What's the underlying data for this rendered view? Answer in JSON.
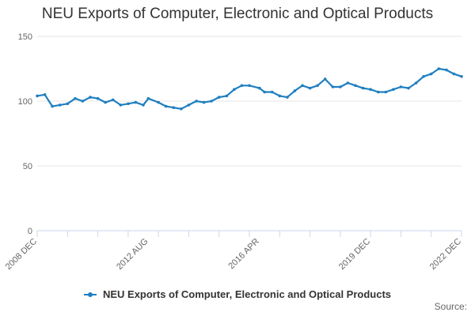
{
  "chart_data": {
    "type": "line",
    "title": "NEU Exports of Computer, Electronic and Optical Products",
    "xlabel": "",
    "ylabel": "",
    "ylim": [
      0,
      150
    ],
    "yticks": [
      0,
      50,
      100,
      150
    ],
    "x_tick_labels": [
      "2008 DEC",
      "2012 AUG",
      "2016 APR",
      "2019 DEC",
      "2022 DEC"
    ],
    "grid": true,
    "legend_position": "bottom",
    "series": [
      {
        "name": "NEU Exports of Computer, Electronic and Optical Products",
        "color": "#1f7fc0",
        "x": [
          "2008-12",
          "2009-03",
          "2009-06",
          "2009-09",
          "2009-12",
          "2010-03",
          "2010-06",
          "2010-09",
          "2010-12",
          "2011-03",
          "2011-06",
          "2011-09",
          "2011-12",
          "2012-03",
          "2012-06",
          "2012-08",
          "2012-12",
          "2013-03",
          "2013-06",
          "2013-09",
          "2013-12",
          "2014-03",
          "2014-06",
          "2014-09",
          "2014-12",
          "2015-03",
          "2015-06",
          "2015-09",
          "2015-12",
          "2016-04",
          "2016-06",
          "2016-09",
          "2016-12",
          "2017-03",
          "2017-06",
          "2017-09",
          "2017-12",
          "2018-03",
          "2018-06",
          "2018-09",
          "2018-12",
          "2019-03",
          "2019-06",
          "2019-09",
          "2019-12",
          "2020-03",
          "2020-06",
          "2020-09",
          "2020-12",
          "2021-03",
          "2021-06",
          "2021-09",
          "2021-12",
          "2022-03",
          "2022-06",
          "2022-09",
          "2022-12"
        ],
        "values": [
          104,
          105,
          96,
          97,
          98,
          102,
          100,
          103,
          102,
          99,
          101,
          97,
          98,
          99,
          97,
          102,
          99,
          96,
          95,
          94,
          97,
          100,
          99,
          100,
          103,
          104,
          109,
          112,
          112,
          110,
          107,
          107,
          104,
          103,
          108,
          112,
          110,
          112,
          117,
          111,
          111,
          114,
          112,
          110,
          109,
          107,
          107,
          109,
          111,
          110,
          114,
          119,
          121,
          125,
          124,
          121,
          119
        ]
      }
    ]
  },
  "legend": {
    "label": "NEU Exports of Computer, Electronic and Optical Products"
  },
  "footer": {
    "source_label": "Source:"
  }
}
